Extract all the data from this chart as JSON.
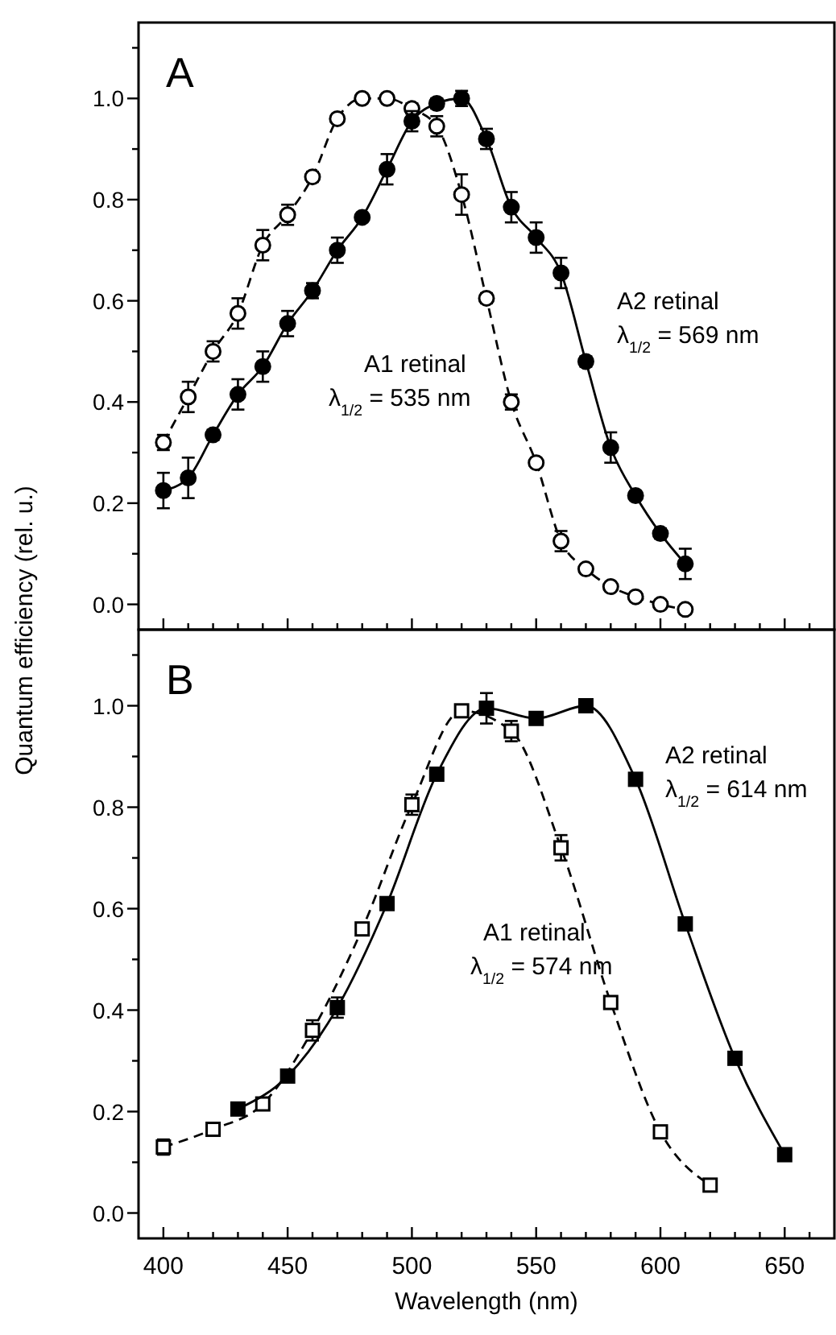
{
  "chart_data": [
    {
      "type": "line",
      "title": "A",
      "ylabel": "Quantum efficiency (rel. u.)",
      "xlim": [
        390,
        670
      ],
      "ylim": [
        -0.05,
        1.15
      ],
      "tick_labels": "y",
      "xticks": [
        400,
        {
          "value": 410,
          "label": null
        },
        {
          "value": 420,
          "label": null
        },
        {
          "value": 430,
          "label": null
        },
        {
          "value": 440,
          "label": null
        },
        450,
        {
          "value": 460,
          "label": null
        },
        {
          "value": 470,
          "label": null
        },
        {
          "value": 480,
          "label": null
        },
        {
          "value": 490,
          "label": null
        },
        500,
        {
          "value": 510,
          "label": null
        },
        {
          "value": 520,
          "label": null
        },
        {
          "value": 530,
          "label": null
        },
        {
          "value": 540,
          "label": null
        },
        550,
        {
          "value": 560,
          "label": null
        },
        {
          "value": 570,
          "label": null
        },
        {
          "value": 580,
          "label": null
        },
        {
          "value": 590,
          "label": null
        },
        600,
        {
          "value": 610,
          "label": null
        },
        {
          "value": 620,
          "label": null
        },
        {
          "value": 630,
          "label": null
        },
        {
          "value": 640,
          "label": null
        },
        650,
        {
          "value": 660,
          "label": null
        }
      ],
      "yticks": [
        {
          "value": 0,
          "label": "0.0"
        },
        {
          "value": 0.1,
          "label": null
        },
        0.2,
        {
          "value": 0.3,
          "label": null
        },
        0.4,
        {
          "value": 0.5,
          "label": null
        },
        0.6,
        {
          "value": 0.7,
          "label": null
        },
        0.8,
        {
          "value": 0.9,
          "label": null
        },
        {
          "value": 1,
          "label": "1.0"
        },
        {
          "value": 1.1,
          "label": null
        }
      ],
      "series": [
        {
          "name": "A1 retinal",
          "color": "#000000",
          "marker": "circle",
          "line_style": "dashed",
          "x": [
            400,
            410,
            420,
            430,
            440,
            450,
            460,
            470,
            480,
            490,
            500,
            510,
            520,
            530,
            540,
            550,
            560,
            570,
            580,
            590,
            600,
            610
          ],
          "values": [
            0.32,
            0.41,
            0.5,
            0.575,
            0.71,
            0.77,
            0.845,
            0.96,
            1.0,
            1.0,
            0.98,
            0.945,
            0.81,
            0.605,
            0.4,
            0.28,
            0.125,
            0.07,
            0.035,
            0.015,
            0.0,
            -0.01
          ],
          "errors": [
            0.015,
            0.03,
            0.02,
            0.03,
            0.03,
            0.02,
            0.01,
            0.005,
            0.005,
            0.005,
            0.01,
            0.02,
            0.04,
            0.01,
            0.015,
            0.005,
            0.02,
            0.005,
            0.005,
            0.005,
            0.005,
            0.005
          ]
        },
        {
          "name": "A2 retinal",
          "color": "#000000",
          "marker": "circle",
          "line_style": "solid",
          "x": [
            400,
            410,
            420,
            430,
            440,
            450,
            460,
            470,
            480,
            490,
            500,
            510,
            520,
            530,
            540,
            550,
            560,
            570,
            580,
            590,
            600,
            610
          ],
          "values": [
            0.225,
            0.25,
            0.335,
            0.415,
            0.47,
            0.555,
            0.62,
            0.7,
            0.765,
            0.86,
            0.955,
            0.99,
            1.0,
            0.92,
            0.785,
            0.725,
            0.655,
            0.48,
            0.31,
            0.215,
            0.14,
            0.08
          ],
          "errors": [
            0.035,
            0.04,
            0.01,
            0.03,
            0.03,
            0.025,
            0.015,
            0.025,
            0.005,
            0.03,
            0.02,
            0.01,
            0.015,
            0.02,
            0.03,
            0.03,
            0.03,
            0.01,
            0.03,
            0.005,
            0.01,
            0.03
          ]
        }
      ],
      "annotations": [
        "λ$_{1/2}$ = 535 nm",
        "λ$_{1/2}$ = 569 nm"
      ]
    },
    {
      "type": "line",
      "title": "B",
      "xlabel": "Wavelength (nm)",
      "xlim": [
        390,
        670
      ],
      "ylim": [
        -0.05,
        1.15
      ],
      "xticks": [
        400,
        {
          "value": 410,
          "label": null
        },
        {
          "value": 420,
          "label": null
        },
        {
          "value": 430,
          "label": null
        },
        {
          "value": 440,
          "label": null
        },
        450,
        {
          "value": 460,
          "label": null
        },
        {
          "value": 470,
          "label": null
        },
        {
          "value": 480,
          "label": null
        },
        {
          "value": 490,
          "label": null
        },
        500,
        {
          "value": 510,
          "label": null
        },
        {
          "value": 520,
          "label": null
        },
        {
          "value": 530,
          "label": null
        },
        {
          "value": 540,
          "label": null
        },
        550,
        {
          "value": 560,
          "label": null
        },
        {
          "value": 570,
          "label": null
        },
        {
          "value": 580,
          "label": null
        },
        {
          "value": 590,
          "label": null
        },
        600,
        {
          "value": 610,
          "label": null
        },
        {
          "value": 620,
          "label": null
        },
        {
          "value": 630,
          "label": null
        },
        {
          "value": 640,
          "label": null
        },
        650,
        {
          "value": 660,
          "label": null
        }
      ],
      "yticks": [
        {
          "value": 0,
          "label": "0.0"
        },
        {
          "value": 0.1,
          "label": null
        },
        0.2,
        {
          "value": 0.3,
          "label": null
        },
        0.4,
        {
          "value": 0.5,
          "label": null
        },
        0.6,
        {
          "value": 0.7,
          "label": null
        },
        0.8,
        {
          "value": 0.9,
          "label": null
        },
        {
          "value": 1,
          "label": "1.0"
        },
        {
          "value": 1.1,
          "label": null
        }
      ],
      "series": [
        {
          "name": "A1 retinal",
          "color": "#000000",
          "marker": "square",
          "line_style": "dashed",
          "x": [
            400,
            420,
            440,
            460,
            480,
            500,
            520,
            540,
            560,
            580,
            600,
            620
          ],
          "values": [
            0.13,
            0.165,
            0.215,
            0.36,
            0.56,
            0.805,
            0.99,
            0.95,
            0.72,
            0.415,
            0.16,
            0.055
          ],
          "errors": [
            0.015,
            0.005,
            0.01,
            0.02,
            0.005,
            0.02,
            0.005,
            0.02,
            0.025,
            0.005,
            0.005,
            0.005
          ]
        },
        {
          "name": "A2 retinal",
          "color": "#000000",
          "marker": "square",
          "line_style": "solid",
          "x": [
            430,
            450,
            470,
            490,
            510,
            530,
            550,
            570,
            590,
            610,
            630,
            650
          ],
          "values": [
            0.205,
            0.27,
            0.405,
            0.61,
            0.865,
            0.995,
            0.975,
            1.0,
            0.855,
            0.57,
            0.305,
            0.115
          ],
          "errors": [
            0.005,
            0.01,
            0.02,
            0.005,
            0.01,
            0.03,
            0.005,
            0.005,
            0.01,
            0.005,
            0.005,
            0.005
          ]
        }
      ],
      "annotations": [
        "λ$_{1/2}$ = 574 nm",
        "λ$_{1/2}$ = 614 nm"
      ]
    }
  ]
}
